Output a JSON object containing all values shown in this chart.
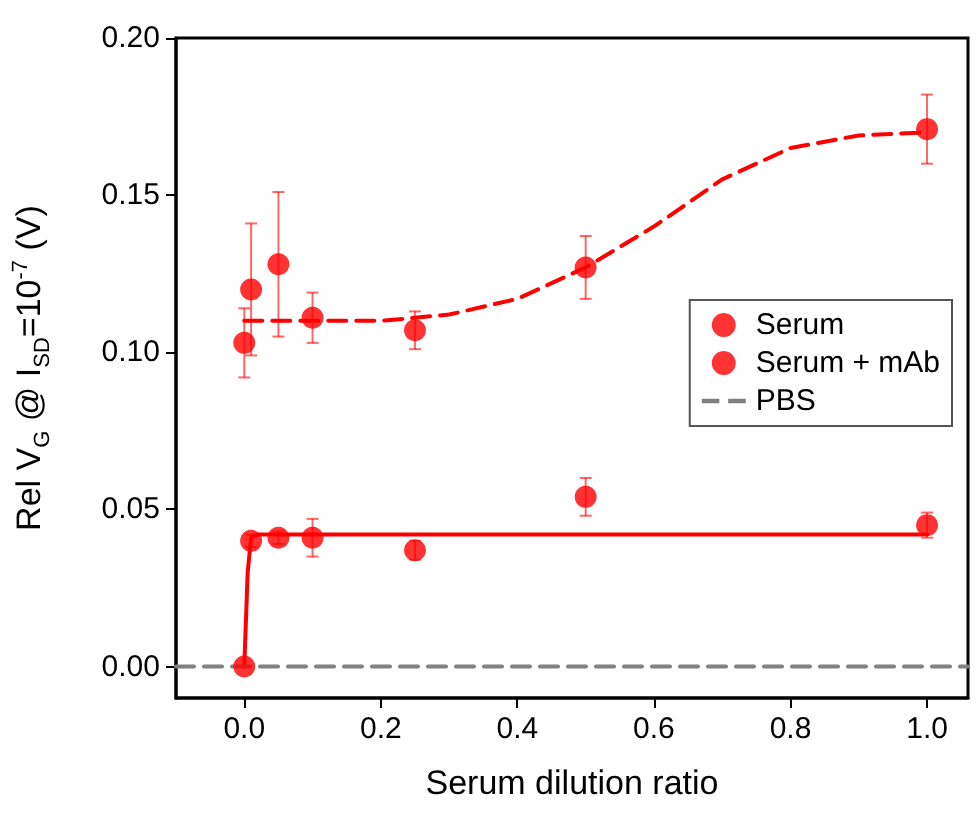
{
  "chart_data": {
    "type": "scatter",
    "xlabel": "Serum dilution ratio",
    "ylabel": "Rel V$_{G}$ @ I$_{SD}$=10$^{-7}$ (V)",
    "xlim": [
      -0.1,
      1.06
    ],
    "ylim": [
      -0.01,
      0.2
    ],
    "xticks": [
      {
        "value": 0,
        "label": "0.0"
      },
      {
        "value": 0.2,
        "label": "0.2"
      },
      {
        "value": 0.4,
        "label": "0.4"
      },
      {
        "value": 0.6,
        "label": "0.6"
      },
      {
        "value": 0.8,
        "label": "0.8"
      },
      {
        "value": 1,
        "label": "1.0"
      }
    ],
    "yticks": [
      {
        "value": 0,
        "label": "0.00"
      },
      {
        "value": 0.05,
        "label": "0.05"
      },
      {
        "value": 0.1,
        "label": "0.10"
      },
      {
        "value": 0.15,
        "label": "0.15"
      },
      {
        "value": 0.2,
        "label": "0.20"
      }
    ],
    "grid": false,
    "legend": "right",
    "marker": "circle",
    "series": [
      {
        "name": "Serum",
        "color": "#ff0000",
        "x": [
          0,
          0.01,
          0.05,
          0.1,
          0.25,
          0.5,
          1
        ],
        "values": [
          0,
          0.04,
          0.041,
          0.041,
          0.037,
          0.054,
          0.045
        ],
        "errors": [
          null,
          0.002,
          0.002,
          0.006,
          0.003,
          0.006,
          0.004
        ]
      },
      {
        "name": "Serum + mAb",
        "color": "#ff0000",
        "x": [
          0,
          0.01,
          0.05,
          0.1,
          0.25,
          0.5,
          1
        ],
        "values": [
          0.103,
          0.12,
          0.128,
          0.111,
          0.107,
          0.127,
          0.171
        ],
        "errors": [
          0.011,
          0.021,
          0.023,
          0.008,
          0.006,
          0.01,
          0.011
        ]
      },
      {
        "type": "line",
        "color": "#ff0000",
        "marker": "none",
        "line_style": "solid",
        "x": [
          0,
          0.005,
          0.01,
          0.02,
          1
        ],
        "values": [
          0,
          0.03,
          0.041,
          0.042,
          0.042
        ]
      },
      {
        "type": "line",
        "color": "#ff0000",
        "marker": "none",
        "line_style": "dashed",
        "x": [
          0,
          0.1,
          0.2,
          0.3,
          0.4,
          0.5,
          0.6,
          0.7,
          0.8,
          0.9,
          1
        ],
        "values": [
          0.11,
          0.11,
          0.11,
          0.112,
          0.117,
          0.127,
          0.14,
          0.155,
          0.165,
          0.169,
          0.17
        ]
      },
      {
        "name": "PBS",
        "type": "line",
        "color": "#808080",
        "marker": "none",
        "line_style": "dashed",
        "x": [
          -0.1,
          1.06
        ],
        "values": [
          0,
          0
        ]
      }
    ]
  }
}
